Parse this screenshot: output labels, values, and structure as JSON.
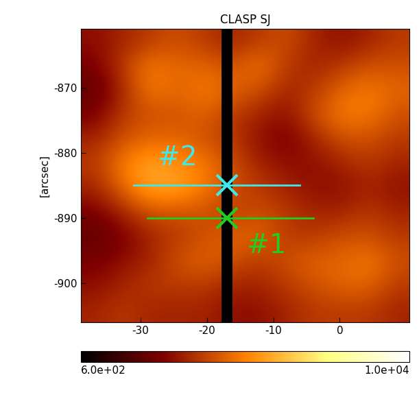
{
  "chart_data": {
    "type": "heatmap",
    "title": "CLASP SJ",
    "y_label": "[arcsec]",
    "xlim": [
      -39,
      10.5
    ],
    "ylim": [
      -906,
      -861
    ],
    "xticks": [
      -30,
      -20,
      -10,
      0
    ],
    "yticks": [
      -900,
      -890,
      -880,
      -870
    ],
    "cells": [
      [
        3200,
        3600,
        4000,
        4400,
        4000,
        3600,
        4000,
        4400,
        3600,
        3200,
        3600,
        4000
      ],
      [
        2800,
        4000,
        5200,
        4800,
        4800,
        4400,
        5200,
        4000,
        3600,
        4000,
        4400,
        4400
      ],
      [
        2400,
        3600,
        5200,
        4800,
        5200,
        4800,
        4400,
        3600,
        4000,
        4800,
        5200,
        4800
      ],
      [
        2800,
        4000,
        4400,
        4400,
        4800,
        4000,
        3600,
        3200,
        4400,
        5200,
        5200,
        4400
      ],
      [
        3600,
        4400,
        4800,
        4800,
        4400,
        4000,
        3200,
        2800,
        3600,
        4400,
        4400,
        4000
      ],
      [
        4000,
        5200,
        6000,
        5600,
        5200,
        4400,
        3600,
        3200,
        3200,
        3600,
        4000,
        3600
      ],
      [
        3600,
        4800,
        6000,
        6000,
        5200,
        4400,
        4000,
        3600,
        3200,
        3200,
        3600,
        3200
      ],
      [
        2800,
        3600,
        4400,
        4400,
        4400,
        4000,
        4400,
        4000,
        3600,
        3600,
        4000,
        3600
      ],
      [
        2400,
        2800,
        3600,
        4000,
        4400,
        4800,
        4800,
        4000,
        4000,
        4400,
        4400,
        4000
      ],
      [
        2800,
        3200,
        3600,
        4400,
        4800,
        4400,
        4000,
        4400,
        4800,
        4800,
        5200,
        4400
      ],
      [
        3200,
        3600,
        4000,
        4000,
        4000,
        3600,
        3600,
        4000,
        4400,
        4800,
        4800,
        4000
      ],
      [
        3600,
        4000,
        3600,
        3600,
        3600,
        3200,
        3200,
        3600,
        4000,
        4000,
        4000,
        3600
      ]
    ],
    "slit": {
      "x": -17,
      "width": 1.6,
      "value": 600
    },
    "colorbar": {
      "range": [
        600,
        10000
      ],
      "ticks": [
        {
          "value": 600,
          "label": "6.0e+02"
        },
        {
          "value": 10000,
          "label": "1.0e+04"
        }
      ]
    },
    "lines": [
      {
        "x": [
          -31,
          -6
        ],
        "y": -885,
        "color": "#40e8e8"
      },
      {
        "x": [
          -29,
          -4
        ],
        "y": -890,
        "color": "#22cc22"
      }
    ],
    "points": [
      {
        "label": "#2",
        "x": -17,
        "y": -885,
        "color": "#40e8e8",
        "marker": "x"
      },
      {
        "label": "#1",
        "x": -17,
        "y": -890,
        "color": "#22cc22",
        "marker": "x"
      }
    ]
  }
}
